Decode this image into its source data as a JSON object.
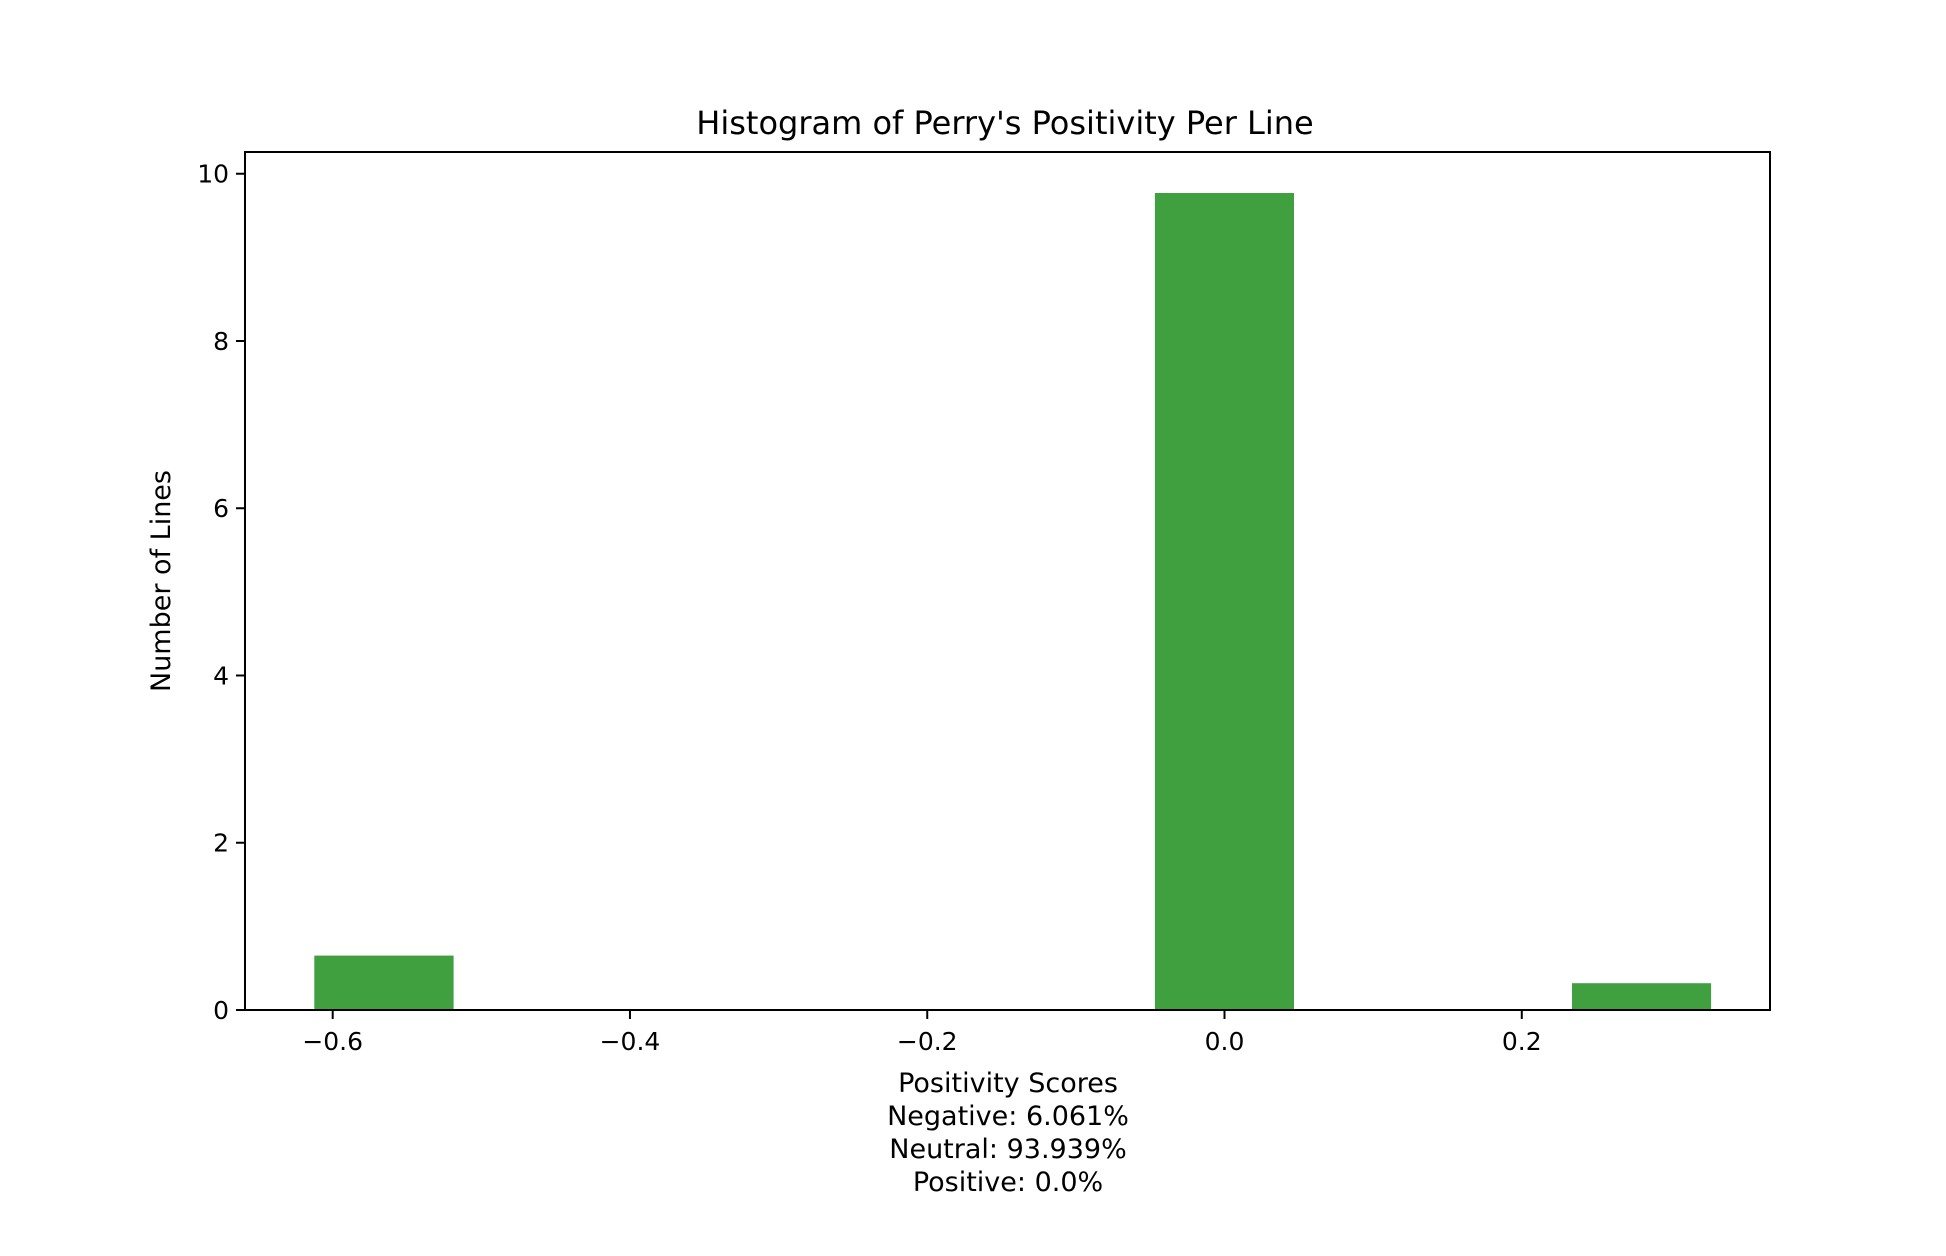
{
  "chart_data": {
    "type": "bar",
    "title": "Histogram of Perry's Positivity Per Line",
    "ylabel": "Number of Lines",
    "xlabel_lines": [
      "Positivity Scores",
      "Negative: 6.061%",
      "Neutral: 93.939%",
      "Positive: 0.0%"
    ],
    "xlim": [
      -0.659,
      0.367
    ],
    "ylim": [
      0,
      10.26
    ],
    "x_ticks": [
      -0.6,
      -0.4,
      -0.2,
      0.0,
      0.2
    ],
    "x_tick_labels": [
      "−0.6",
      "−0.4",
      "−0.2",
      "0.0",
      "0.2"
    ],
    "y_ticks": [
      0,
      2,
      4,
      6,
      8,
      10
    ],
    "y_tick_labels": [
      "0",
      "2",
      "4",
      "6",
      "8",
      "10"
    ],
    "bar_color": "#40a040",
    "grid": false,
    "bars": [
      {
        "x_start": -0.6124,
        "x_end": -0.5187,
        "value": 0.65
      },
      {
        "x_start": -0.0468,
        "x_end": 0.0468,
        "value": 9.77
      },
      {
        "x_start": 0.2338,
        "x_end": 0.3274,
        "value": 0.32
      }
    ]
  }
}
